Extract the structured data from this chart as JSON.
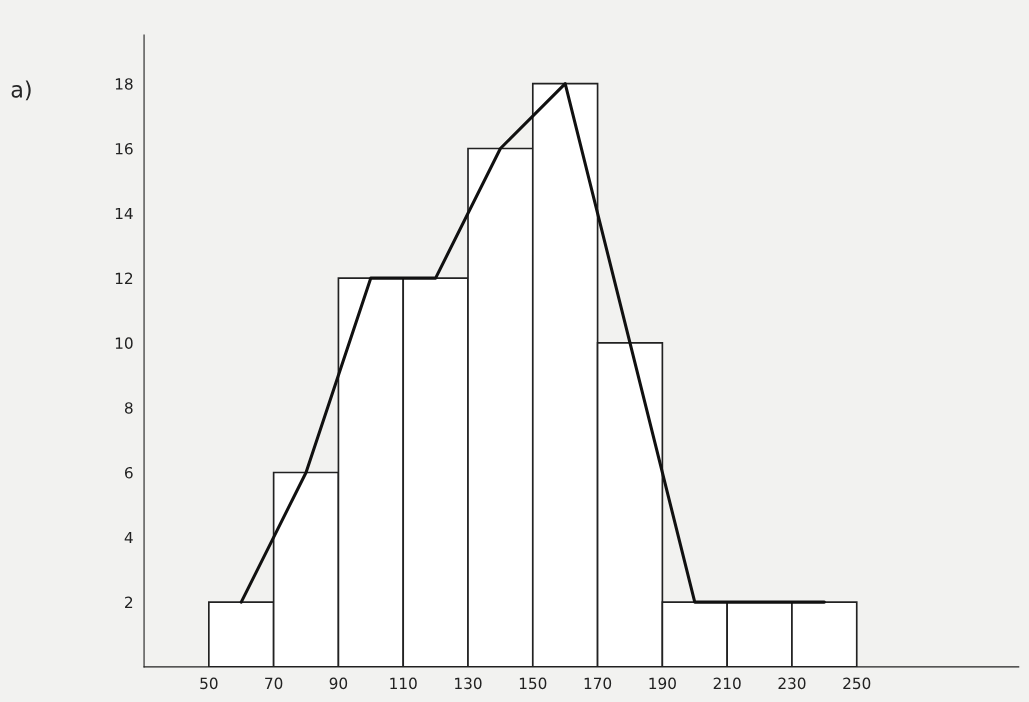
{
  "chart_data": {
    "type": "histogram",
    "bins": [
      50,
      70,
      90,
      110,
      130,
      150,
      170,
      190,
      210,
      230,
      250
    ],
    "values": [
      2,
      6,
      12,
      12,
      16,
      18,
      10,
      2,
      2,
      2
    ],
    "color": "#ffffff",
    "series": [
      {
        "type": "line",
        "color": "#111111",
        "x": [
          60,
          80,
          100,
          120,
          140,
          160,
          180,
          200,
          220,
          240
        ],
        "values": [
          2,
          6,
          12,
          12,
          16,
          18,
          10,
          2,
          2,
          2
        ]
      }
    ],
    "xlim": [
      30,
      300
    ],
    "ylim": [
      0,
      19.5
    ],
    "xticks": [
      50,
      70,
      90,
      110,
      130,
      150,
      170,
      190,
      210,
      230,
      250
    ],
    "yticks": [
      2,
      4,
      6,
      8,
      10,
      12,
      14,
      16,
      18
    ],
    "annotations": [
      "a)"
    ],
    "grid": false,
    "legend": false
  }
}
